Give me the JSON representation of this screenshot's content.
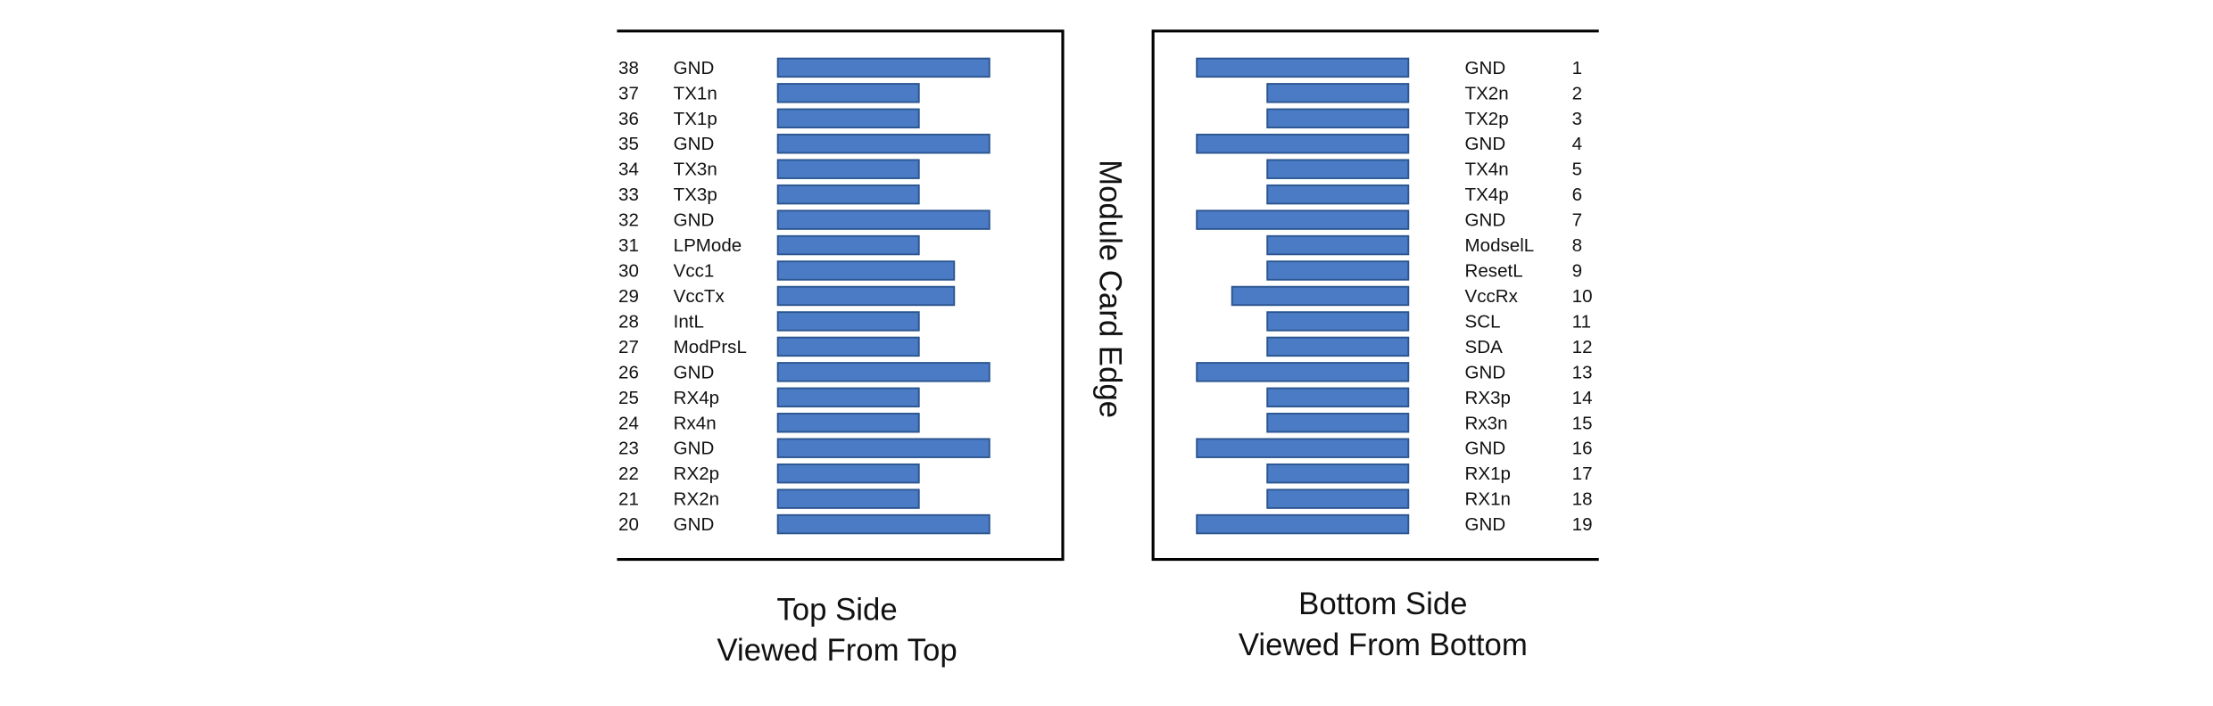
{
  "top_side": {
    "caption_line1": "Top Side",
    "caption_line2": "Viewed From Top",
    "pins": [
      {
        "number": 38,
        "label": "GND"
      },
      {
        "number": 37,
        "label": "TX1n"
      },
      {
        "number": 36,
        "label": "TX1p"
      },
      {
        "number": 35,
        "label": "GND"
      },
      {
        "number": 34,
        "label": "TX3n"
      },
      {
        "number": 33,
        "label": "TX3p"
      },
      {
        "number": 32,
        "label": "GND"
      },
      {
        "number": 31,
        "label": "LPMode"
      },
      {
        "number": 30,
        "label": "Vcc1"
      },
      {
        "number": 29,
        "label": "VccTx"
      },
      {
        "number": 28,
        "label": "IntL"
      },
      {
        "number": 27,
        "label": "ModPrsL"
      },
      {
        "number": 26,
        "label": "GND"
      },
      {
        "number": 25,
        "label": "RX4p"
      },
      {
        "number": 24,
        "label": "Rx4n"
      },
      {
        "number": 23,
        "label": "GND"
      },
      {
        "number": 22,
        "label": "RX2p"
      },
      {
        "number": 21,
        "label": "RX2n"
      },
      {
        "number": 20,
        "label": "GND"
      }
    ]
  },
  "bottom_side": {
    "caption_line1": "Bottom Side",
    "caption_line2": "Viewed From Bottom",
    "pins": [
      {
        "number": 1,
        "label": "GND"
      },
      {
        "number": 2,
        "label": "TX2n"
      },
      {
        "number": 3,
        "label": "TX2p"
      },
      {
        "number": 4,
        "label": "GND"
      },
      {
        "number": 5,
        "label": "TX4n"
      },
      {
        "number": 6,
        "label": "TX4p"
      },
      {
        "number": 7,
        "label": "GND"
      },
      {
        "number": 8,
        "label": "ModselL"
      },
      {
        "number": 9,
        "label": "ResetL"
      },
      {
        "number": 10,
        "label": "VccRx"
      },
      {
        "number": 11,
        "label": "SCL"
      },
      {
        "number": 12,
        "label": "SDA"
      },
      {
        "number": 13,
        "label": "GND"
      },
      {
        "number": 14,
        "label": "RX3p"
      },
      {
        "number": 15,
        "label": "Rx3n"
      },
      {
        "number": 16,
        "label": "GND"
      },
      {
        "number": 17,
        "label": "RX1p"
      },
      {
        "number": 18,
        "label": "RX1n"
      },
      {
        "number": 19,
        "label": "GND"
      }
    ]
  },
  "center_label": "Module Card Edge"
}
